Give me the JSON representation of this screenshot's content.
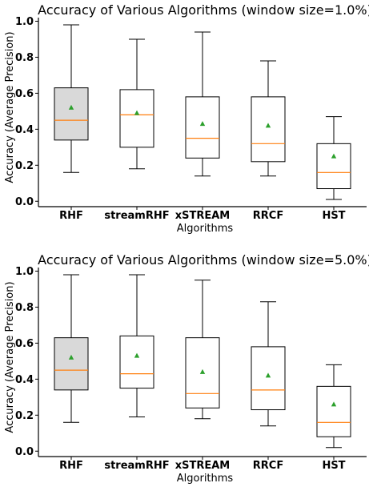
{
  "chart_data": [
    {
      "type": "box",
      "title": "Accuracy of Various Algorithms (window size=1.0%)",
      "xlabel": "Algorithms",
      "ylabel": "Accuracy (Average Precision)",
      "ylim": [
        -0.03,
        1.02
      ],
      "yticks": [
        "0.0",
        "0.2",
        "0.4",
        "0.6",
        "0.8",
        "1.0"
      ],
      "ytick_values": [
        0.0,
        0.2,
        0.4,
        0.6,
        0.8,
        1.0
      ],
      "categories": [
        "RHF",
        "streamRHF",
        "xSTREAM",
        "RRCF",
        "HST"
      ],
      "boxes": [
        {
          "whisker_low": 0.16,
          "q1": 0.34,
          "median": 0.45,
          "q3": 0.63,
          "whisker_high": 0.98,
          "mean": 0.52,
          "highlight": true
        },
        {
          "whisker_low": 0.18,
          "q1": 0.3,
          "median": 0.48,
          "q3": 0.62,
          "whisker_high": 0.9,
          "mean": 0.49,
          "highlight": false
        },
        {
          "whisker_low": 0.14,
          "q1": 0.24,
          "median": 0.35,
          "q3": 0.58,
          "whisker_high": 0.94,
          "mean": 0.43,
          "highlight": false
        },
        {
          "whisker_low": 0.14,
          "q1": 0.22,
          "median": 0.32,
          "q3": 0.58,
          "whisker_high": 0.78,
          "mean": 0.42,
          "highlight": false
        },
        {
          "whisker_low": 0.01,
          "q1": 0.07,
          "median": 0.16,
          "q3": 0.32,
          "whisker_high": 0.47,
          "mean": 0.25,
          "highlight": false
        }
      ]
    },
    {
      "type": "box",
      "title": "Accuracy of Various Algorithms (window size=5.0%)",
      "xlabel": "Algorithms",
      "ylabel": "Accuracy (Average Precision)",
      "ylim": [
        -0.03,
        1.02
      ],
      "yticks": [
        "0.0",
        "0.2",
        "0.4",
        "0.6",
        "0.8",
        "1.0"
      ],
      "ytick_values": [
        0.0,
        0.2,
        0.4,
        0.6,
        0.8,
        1.0
      ],
      "categories": [
        "RHF",
        "streamRHF",
        "xSTREAM",
        "RRCF",
        "HST"
      ],
      "boxes": [
        {
          "whisker_low": 0.16,
          "q1": 0.34,
          "median": 0.45,
          "q3": 0.63,
          "whisker_high": 0.98,
          "mean": 0.52,
          "highlight": true
        },
        {
          "whisker_low": 0.19,
          "q1": 0.35,
          "median": 0.43,
          "q3": 0.64,
          "whisker_high": 0.98,
          "mean": 0.53,
          "highlight": false
        },
        {
          "whisker_low": 0.18,
          "q1": 0.24,
          "median": 0.32,
          "q3": 0.63,
          "whisker_high": 0.95,
          "mean": 0.44,
          "highlight": false
        },
        {
          "whisker_low": 0.14,
          "q1": 0.23,
          "median": 0.34,
          "q3": 0.58,
          "whisker_high": 0.83,
          "mean": 0.42,
          "highlight": false
        },
        {
          "whisker_low": 0.02,
          "q1": 0.08,
          "median": 0.16,
          "q3": 0.36,
          "whisker_high": 0.48,
          "mean": 0.26,
          "highlight": false
        }
      ]
    }
  ],
  "colors": {
    "median": "#ff7f0e",
    "mean_marker": "#2ca02c",
    "box_stroke": "#000000",
    "highlight_fill": "#d9d9d9",
    "box_fill": "#ffffff"
  }
}
